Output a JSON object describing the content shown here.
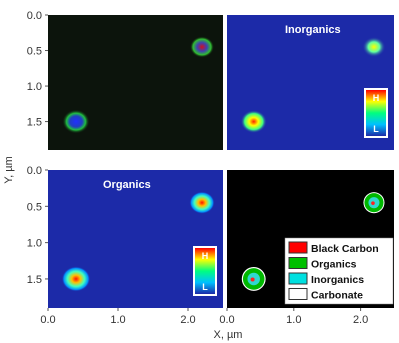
{
  "chart_data": {
    "type": "heatmap",
    "xlabel": "X, µm",
    "ylabel": "Y, µm",
    "x_ticks": [
      "0.0",
      "1.0",
      "2.0"
    ],
    "y_ticks": [
      "0.0",
      "0.5",
      "1.0",
      "1.5"
    ],
    "xlim": [
      0,
      2.5
    ],
    "ylim": [
      1.9,
      0
    ],
    "particles": [
      {
        "x": 0.4,
        "y": 1.5,
        "r": 0.17
      },
      {
        "x": 2.2,
        "y": 0.45,
        "r": 0.15
      }
    ],
    "panels": [
      {
        "id": "composite",
        "title": "",
        "background": "#0c140c",
        "position": "top-left",
        "show_x_ticks": false,
        "show_y_ticks": true,
        "colorbar": null
      },
      {
        "id": "inorganics",
        "title": "Inorganics",
        "background": "#1c2aa8",
        "position": "top-right",
        "show_x_ticks": false,
        "show_y_ticks": false,
        "colorbar": {
          "high": "H",
          "low": "L"
        }
      },
      {
        "id": "organics",
        "title": "Organics",
        "background": "#1c2aa8",
        "position": "bottom-left",
        "show_x_ticks": true,
        "show_y_ticks": true,
        "colorbar": {
          "high": "H",
          "low": "L"
        }
      },
      {
        "id": "map",
        "title": "",
        "background": "#000000",
        "position": "bottom-right",
        "show_x_ticks": true,
        "show_y_ticks": false,
        "colorbar": null
      }
    ],
    "legend": {
      "placement": "bottom-right",
      "entries": [
        {
          "label": "Black Carbon",
          "color": "#ff0000"
        },
        {
          "label": "Organics",
          "color": "#00c000"
        },
        {
          "label": "Inorganics",
          "color": "#00e0e0"
        },
        {
          "label": "Carbonate",
          "color": "#ffffff"
        }
      ]
    },
    "colors": {
      "heat": [
        "#1c2aa8",
        "#00a0ff",
        "#00ffd0",
        "#80ff40",
        "#ffff00",
        "#ff8000",
        "#ff0000"
      ]
    }
  }
}
